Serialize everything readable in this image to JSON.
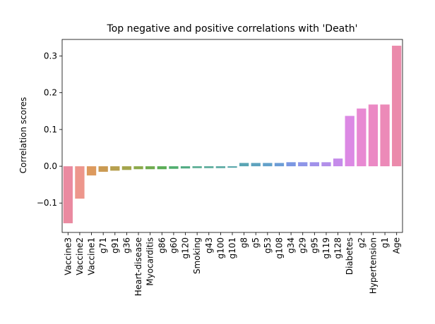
{
  "chart_data": {
    "type": "bar",
    "title": "Top negative and positive correlations with 'Death'",
    "xlabel": "",
    "ylabel": "Correlation scores",
    "ylim": [
      -0.18,
      0.345
    ],
    "yticks": [
      -0.1,
      0.0,
      0.1,
      0.2,
      0.3
    ],
    "ytick_labels": [
      "−0.1",
      "0.0",
      "0.1",
      "0.2",
      "0.3"
    ],
    "grid": false,
    "categories": [
      "Vaccine3",
      "Vaccine2",
      "Vaccine1",
      "g71",
      "g91",
      "g36",
      "Heart-disease",
      "Myocarditis",
      "g86",
      "g60",
      "g120",
      "Smoking",
      "g43",
      "g100",
      "g101",
      "g8",
      "g5",
      "g53",
      "g108",
      "g34",
      "g29",
      "g95",
      "g119",
      "g128",
      "Diabetes",
      "g2",
      "Hypertension",
      "g1",
      "Age"
    ],
    "values": [
      -0.155,
      -0.088,
      -0.025,
      -0.015,
      -0.012,
      -0.01,
      -0.008,
      -0.008,
      -0.008,
      -0.007,
      -0.006,
      -0.005,
      -0.005,
      -0.005,
      -0.004,
      0.009,
      0.009,
      0.009,
      0.009,
      0.011,
      0.011,
      0.011,
      0.011,
      0.021,
      0.137,
      0.157,
      0.168,
      0.168,
      0.328
    ],
    "colors": [
      "#ea8aa0",
      "#ed968c",
      "#dd9a5e",
      "#ca9a52",
      "#b7a04f",
      "#a4a54c",
      "#8caa4b",
      "#70ab4f",
      "#5bad56",
      "#51ae6f",
      "#52ac83",
      "#54aa8f",
      "#55a998",
      "#56a8a1",
      "#58a6aa",
      "#5aa5b4",
      "#5ea3be",
      "#63a1ca",
      "#6c9dd6",
      "#7b97e2",
      "#8e95e8",
      "#a091ea",
      "#b28ee9",
      "#c58bea",
      "#dc89e4",
      "#e889d2",
      "#eb89c4",
      "#ec8ab8",
      "#eb8aab"
    ]
  }
}
